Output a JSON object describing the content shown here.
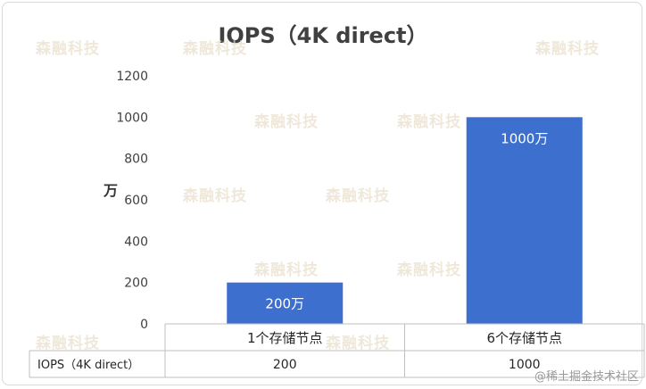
{
  "chart_data": {
    "type": "bar",
    "title": "IOPS（4K direct）",
    "ylabel": "万",
    "ylim": [
      0,
      1200
    ],
    "yticks": [
      "0",
      "200",
      "400",
      "600",
      "800",
      "1000",
      "1200"
    ],
    "categories": [
      "1个存储节点",
      "6个存储节点"
    ],
    "series": [
      {
        "name": "IOPS（4K direct）",
        "values": [
          200,
          1000
        ]
      }
    ],
    "data_labels": [
      "200万",
      "1000万"
    ],
    "table_values": [
      "200",
      "1000"
    ],
    "bar_color": "#3d6fcf"
  },
  "watermark": {
    "text": "森融科技"
  },
  "footer": {
    "text": "@稀土掘金技术社区"
  }
}
